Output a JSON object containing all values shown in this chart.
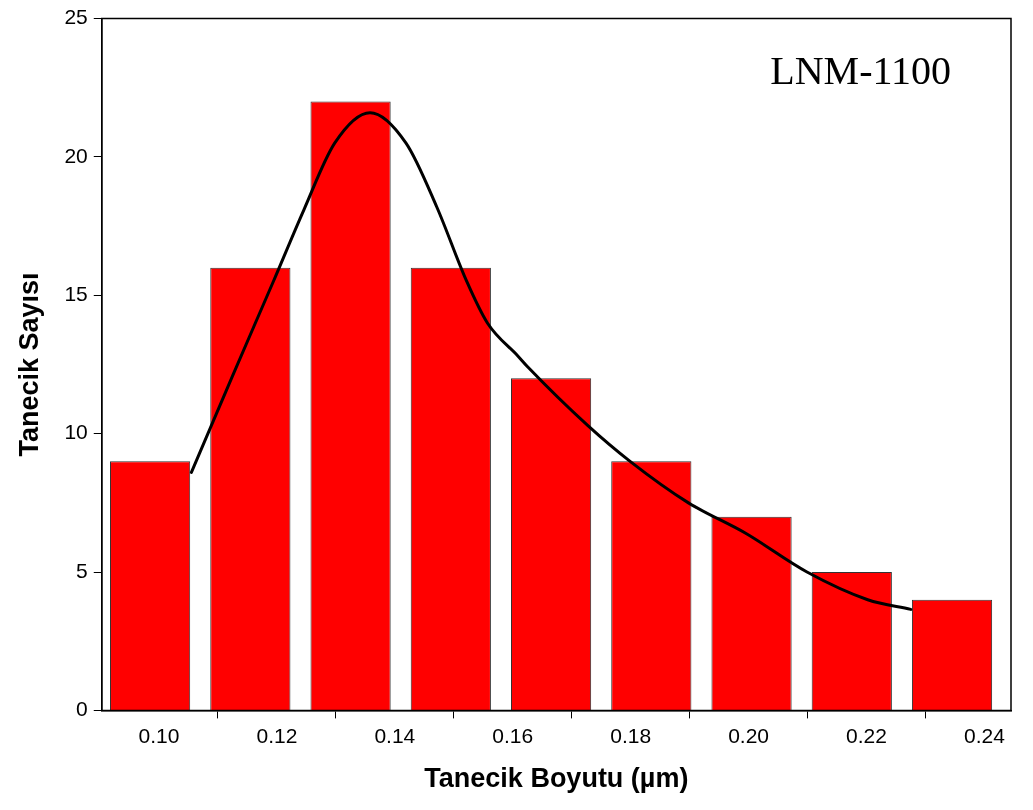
{
  "chart_data": {
    "type": "histogram",
    "xlabel": "Tanecik Boyutu (µm)",
    "ylabel": "Tanecik Sayısı",
    "annotations": [
      "LNM-1100"
    ],
    "bins": [
      0.09,
      0.107,
      0.124,
      0.141,
      0.158,
      0.175,
      0.192,
      0.209,
      0.226,
      0.243
    ],
    "values": [
      9,
      16,
      22,
      16,
      12,
      9,
      7,
      5,
      4
    ],
    "color": "#ff0000",
    "series": [
      {
        "type": "line",
        "color": "#000000",
        "x": [
          0.1055,
          0.1125,
          0.1194,
          0.1246,
          0.1298,
          0.1358,
          0.1419,
          0.1471,
          0.1522,
          0.1557,
          0.1609,
          0.1626,
          0.1727,
          0.1799,
          0.1898,
          0.1995,
          0.2099,
          0.2202,
          0.2275
        ],
        "values": [
          8.6,
          12.1,
          15.5,
          18.1,
          20.5,
          21.6,
          20.5,
          18.2,
          15.5,
          14.0,
          12.8,
          12.4,
          10.3,
          9.0,
          7.5,
          6.4,
          5.0,
          4.0,
          3.65
        ]
      }
    ],
    "xlim": [
      0.0903,
      0.2445
    ],
    "xticks": [
      {
        "value": 0.1,
        "label": "0.10"
      },
      0.12,
      0.14,
      0.16,
      0.18,
      {
        "value": 0.2,
        "label": "0.20"
      },
      0.22,
      0.24
    ],
    "ylim": [
      0,
      25
    ],
    "yticks": [
      0,
      5,
      10,
      15,
      20,
      25
    ],
    "grid": false,
    "legend": false,
    "marker": "none",
    "line_style": "solid"
  }
}
